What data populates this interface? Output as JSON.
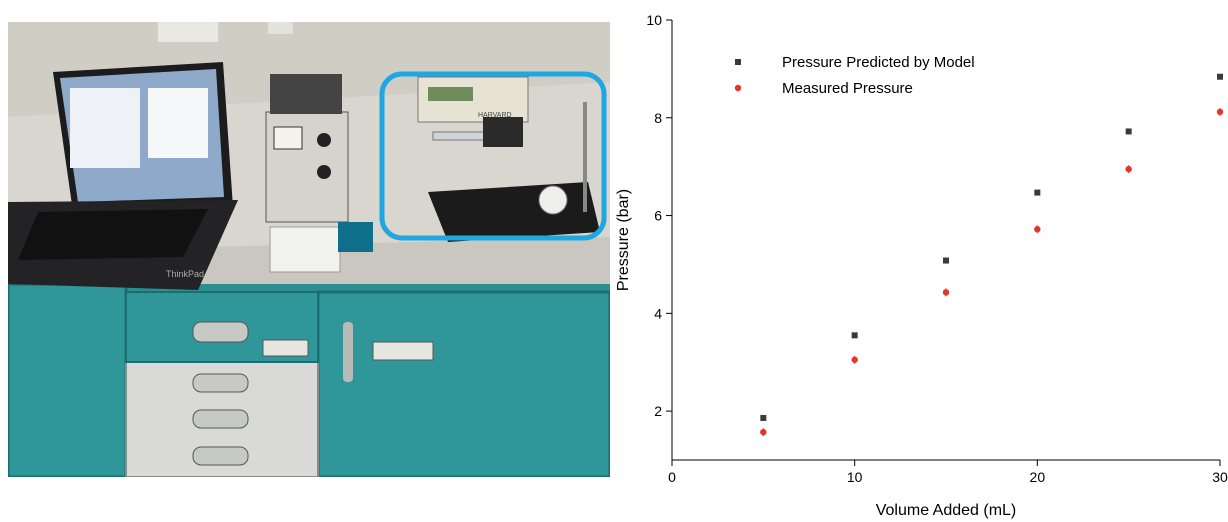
{
  "photo": {
    "label_laptop_brand": "ThinkPad",
    "label_pump_brand": "HARVARD",
    "highlight_color": "#1ea7e1"
  },
  "chart_data": {
    "type": "scatter",
    "xlabel": "Volume Added (mL)",
    "ylabel": "Pressure (bar)",
    "xlim": [
      0,
      30
    ],
    "ylim": [
      1,
      10
    ],
    "xticks": [
      0,
      10,
      20,
      30
    ],
    "yticks": [
      2,
      4,
      6,
      8,
      10
    ],
    "grid": false,
    "legend_position": "top-left",
    "series": [
      {
        "name": "Pressure Predicted by Model",
        "color": "#3a3a3a",
        "marker": "square",
        "x": [
          5,
          10,
          15,
          20,
          25,
          30
        ],
        "y": [
          1.86,
          3.55,
          5.08,
          6.47,
          7.72,
          8.84
        ]
      },
      {
        "name": "Measured Pressure",
        "color": "#e8322a",
        "marker": "circle",
        "x": [
          5,
          10,
          15,
          20,
          25,
          30
        ],
        "y": [
          1.57,
          3.05,
          4.43,
          5.72,
          6.95,
          8.12
        ]
      }
    ]
  }
}
